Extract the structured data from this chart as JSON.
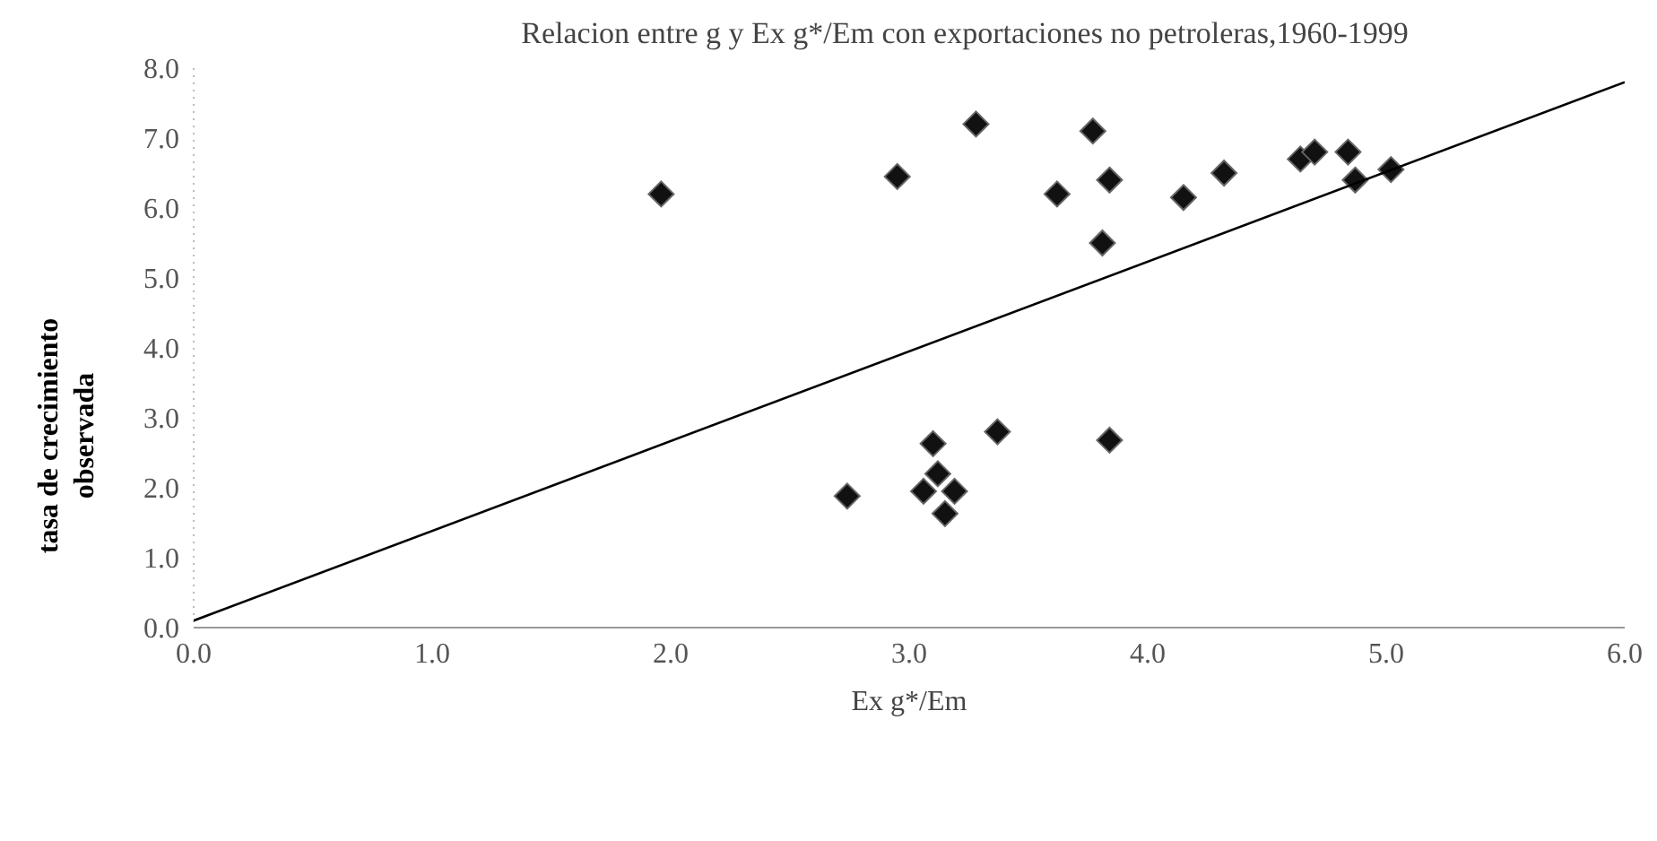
{
  "chart_data": {
    "type": "scatter",
    "title": "Relacion entre g y Ex g*/Em con exportaciones no petroleras,1960-1999",
    "xlabel": "Ex g*/Em",
    "ylabel": "tasa de crecimiento observada",
    "marker": "diamond",
    "xlim": [
      0,
      6
    ],
    "ylim": [
      0,
      8
    ],
    "xticks": [
      {
        "value": 0,
        "label": "0.0"
      },
      {
        "value": 1,
        "label": "1.0"
      },
      {
        "value": 2,
        "label": "2.0"
      },
      {
        "value": 3,
        "label": "3.0"
      },
      {
        "value": 4,
        "label": "4.0"
      },
      {
        "value": 5,
        "label": "5.0"
      },
      {
        "value": 6,
        "label": "6.0"
      }
    ],
    "yticks": [
      {
        "value": 0,
        "label": "0.0"
      },
      {
        "value": 1,
        "label": "1.0"
      },
      {
        "value": 2,
        "label": "2.0"
      },
      {
        "value": 3,
        "label": "3.0"
      },
      {
        "value": 4,
        "label": "4.0"
      },
      {
        "value": 5,
        "label": "5.0"
      },
      {
        "value": 6,
        "label": "6.0"
      },
      {
        "value": 7,
        "label": "7.0"
      },
      {
        "value": 8,
        "label": "8.0"
      }
    ],
    "series": [
      {
        "color": "#111111",
        "x": [
          1.96,
          2.95,
          3.28,
          3.77,
          3.62,
          3.84,
          3.81,
          4.15,
          4.32,
          4.64,
          4.7,
          4.84,
          4.87,
          5.02,
          2.74,
          3.1,
          3.37,
          3.84,
          3.12,
          3.06,
          3.19,
          3.15
        ],
        "values": [
          6.2,
          6.45,
          7.2,
          7.1,
          6.2,
          6.4,
          5.5,
          6.15,
          6.5,
          6.7,
          6.8,
          6.8,
          6.4,
          6.55,
          1.88,
          2.63,
          2.8,
          2.68,
          2.2,
          1.95,
          1.95,
          1.63
        ]
      },
      {
        "type": "line",
        "color": "#000000",
        "marker": "none",
        "x": [
          0,
          6
        ],
        "values": [
          0.1,
          7.8
        ]
      }
    ]
  }
}
